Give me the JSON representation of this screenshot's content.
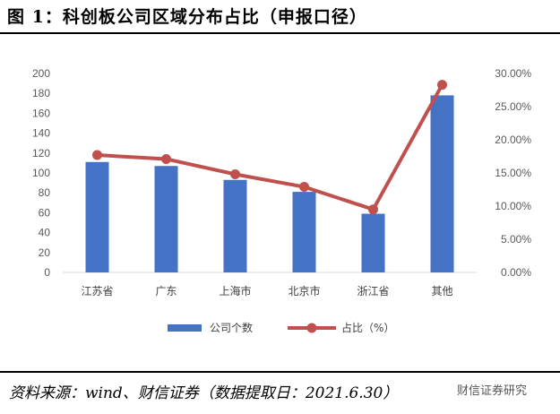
{
  "figure": {
    "title": "图 1：科创板公司区域分布占比（申报口径）",
    "source": "资料来源：wind、财信证券（数据提取日：2021.6.30）",
    "watermark": "财信证券研究"
  },
  "chart_data": {
    "type": "bar",
    "categories": [
      "江苏省",
      "广东",
      "上海市",
      "北京市",
      "浙江省",
      "其他"
    ],
    "series": [
      {
        "name": "公司个数",
        "type": "bar",
        "axis": "left",
        "color": "#4472C4",
        "values": [
          111,
          107,
          93,
          81,
          59,
          178
        ]
      },
      {
        "name": "占比（%）",
        "type": "line",
        "axis": "right",
        "color": "#C0504D",
        "values": [
          17.7,
          17.1,
          14.8,
          12.9,
          9.5,
          28.3
        ]
      }
    ],
    "y_left": {
      "min": 0,
      "max": 200,
      "ticks": [
        "0",
        "20",
        "40",
        "60",
        "80",
        "100",
        "120",
        "140",
        "160",
        "180",
        "200"
      ]
    },
    "y_right": {
      "min": 0,
      "max": 30,
      "ticks": [
        "0.00%",
        "5.00%",
        "10.00%",
        "15.00%",
        "20.00%",
        "25.00%",
        "30.00%"
      ]
    },
    "legend_position": "bottom",
    "grid": false
  }
}
